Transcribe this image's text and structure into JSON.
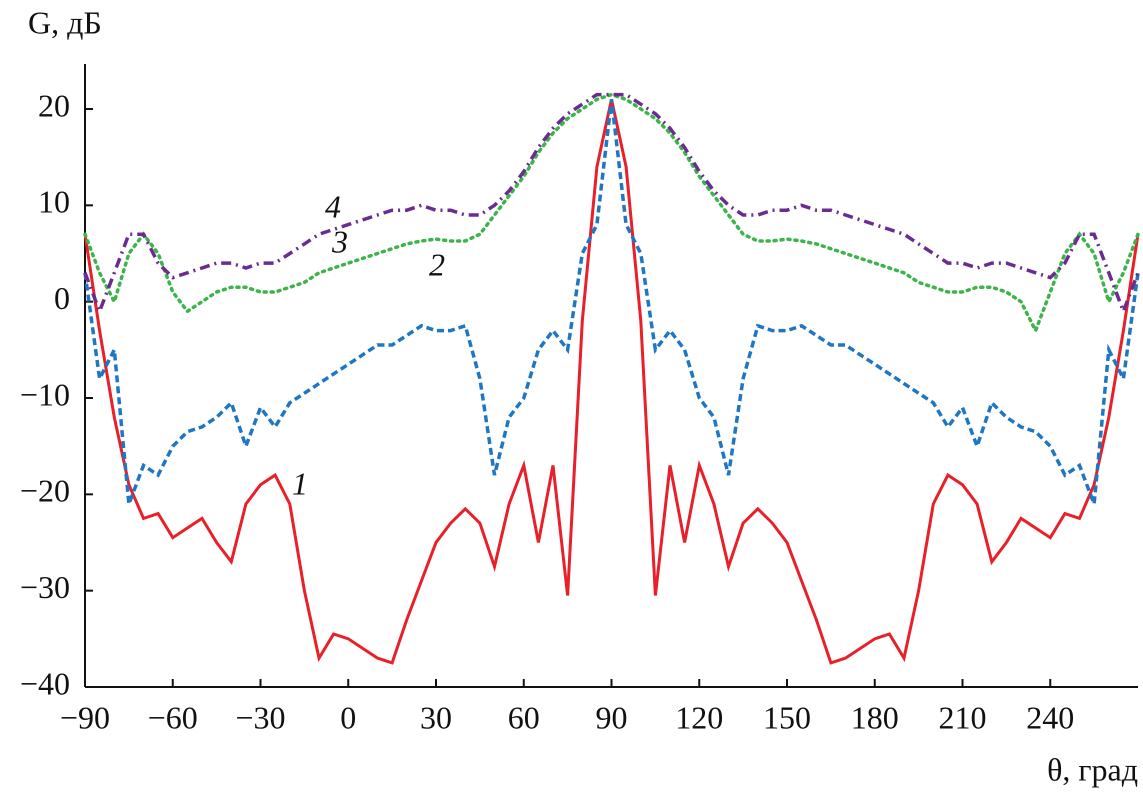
{
  "chart_data": {
    "type": "line",
    "ylabel": "G, дБ",
    "xlabel": "θ, град",
    "xlim": [
      -90,
      270
    ],
    "ylim": [
      -40,
      25
    ],
    "xticks": [
      {
        "value": -90,
        "label": "−90"
      },
      {
        "value": -60,
        "label": "−60"
      },
      {
        "value": -30,
        "label": "−30"
      },
      0,
      30,
      60,
      90,
      120,
      150,
      180,
      210,
      240
    ],
    "yticks": [
      {
        "value": -40,
        "label": "−40"
      },
      {
        "value": -30,
        "label": "−30"
      },
      {
        "value": -20,
        "label": "−20"
      },
      {
        "value": -10,
        "label": "−10"
      },
      0,
      10,
      20
    ],
    "x": [
      -90,
      -85,
      -80,
      -75,
      -70,
      -65,
      -60,
      -55,
      -50,
      -45,
      -40,
      -35,
      -30,
      -25,
      -20,
      -15,
      -10,
      -5,
      0,
      5,
      10,
      15,
      20,
      25,
      30,
      35,
      40,
      45,
      50,
      55,
      60,
      65,
      70,
      75,
      80,
      85,
      90,
      95,
      100,
      105,
      110,
      115,
      120,
      125,
      130,
      135,
      140,
      145,
      150,
      155,
      160,
      165,
      170,
      175,
      180,
      185,
      190,
      195,
      200,
      205,
      210,
      215,
      220,
      225,
      230,
      235,
      240,
      245,
      250,
      255,
      260,
      265,
      270
    ],
    "series": [
      {
        "name": "1",
        "color": "#e8202a",
        "style": "solid",
        "values": [
          7,
          -3,
          -12,
          -19,
          -22.5,
          -22,
          -24.5,
          -23.5,
          -22.5,
          -25,
          -27,
          -21,
          -19,
          -18,
          -21,
          -30,
          -37,
          -34.5,
          -35,
          -36,
          -37,
          -37.5,
          -33,
          -29,
          -25,
          -23,
          -21.5,
          -23,
          -27.5,
          -21,
          -17,
          -25,
          -17,
          -30.5,
          -2,
          14,
          21,
          14,
          -2,
          -30.5,
          -17,
          -25,
          -17,
          -21,
          -27.5,
          -23,
          -21.5,
          -23,
          -25,
          -29,
          -33,
          -37.5,
          -37,
          -36,
          -35,
          -34.5,
          -37,
          -30,
          -21,
          -18,
          -19,
          -21,
          -27,
          -25,
          -22.5,
          -23.5,
          -24.5,
          -22,
          -22.5,
          -19,
          -12,
          -3,
          7
        ]
      },
      {
        "name": "2",
        "color": "#3cb44b",
        "style": "dotted",
        "values": [
          7,
          3,
          0,
          5,
          7,
          5,
          1,
          -1,
          0,
          1,
          1.5,
          1.5,
          1,
          1,
          1.5,
          2,
          3,
          3.5,
          4,
          4.5,
          5,
          5.5,
          6,
          6.3,
          6.5,
          6.3,
          6.3,
          7,
          9,
          11,
          13,
          15.5,
          17.5,
          19,
          20,
          21,
          21.5,
          21,
          20,
          19,
          17.5,
          15.5,
          13,
          11,
          9,
          7,
          6.3,
          6.3,
          6.5,
          6.3,
          6,
          5.5,
          5,
          4.5,
          4,
          3.5,
          3,
          2,
          1.5,
          1,
          1,
          1.5,
          1.5,
          1,
          0,
          -3,
          1,
          5,
          7,
          5,
          0,
          3,
          7
        ]
      },
      {
        "name": "3",
        "color": "#1f77c4",
        "style": "dashed",
        "values": [
          3,
          -8,
          -5,
          -21,
          -17,
          -18,
          -15,
          -13.5,
          -13,
          -12,
          -10.5,
          -15,
          -11,
          -13,
          -10.5,
          -9.5,
          -8.5,
          -7.5,
          -6.5,
          -5.5,
          -4.5,
          -4.5,
          -3.5,
          -2.5,
          -3,
          -3,
          -2.5,
          -8,
          -18,
          -12,
          -10,
          -5,
          -3,
          -5,
          5,
          8,
          21,
          8,
          5,
          -5,
          -3,
          -5,
          -10,
          -12,
          -18,
          -8,
          -2.5,
          -3,
          -3,
          -2.5,
          -3.5,
          -4.5,
          -4.5,
          -5.5,
          -6.5,
          -7.5,
          -8.5,
          -9.5,
          -10.5,
          -13,
          -11,
          -15,
          -10.5,
          -12,
          -13,
          -13.5,
          -15,
          -18,
          -17,
          -21,
          -5,
          -8,
          3
        ]
      },
      {
        "name": "4",
        "color": "#6a2c91",
        "style": "dashdot",
        "values": [
          3,
          -1,
          3,
          7,
          7,
          4,
          2.5,
          3,
          3.5,
          4,
          4,
          3.5,
          4,
          4,
          5,
          6,
          7,
          7.5,
          8,
          8.5,
          9,
          9.5,
          9.5,
          10,
          9.5,
          9.5,
          9,
          9,
          10,
          11.5,
          13.5,
          16,
          18,
          19.5,
          20.5,
          21.5,
          21.5,
          21.5,
          20.5,
          19.5,
          18,
          16,
          13.5,
          11.5,
          10,
          9,
          9,
          9.5,
          9.5,
          10,
          9.5,
          9.5,
          9,
          8.5,
          8,
          7.5,
          7,
          6,
          5,
          4,
          4,
          3.5,
          4,
          4,
          3.5,
          3,
          2.5,
          4,
          7,
          7,
          3,
          -1,
          3
        ]
      }
    ]
  }
}
